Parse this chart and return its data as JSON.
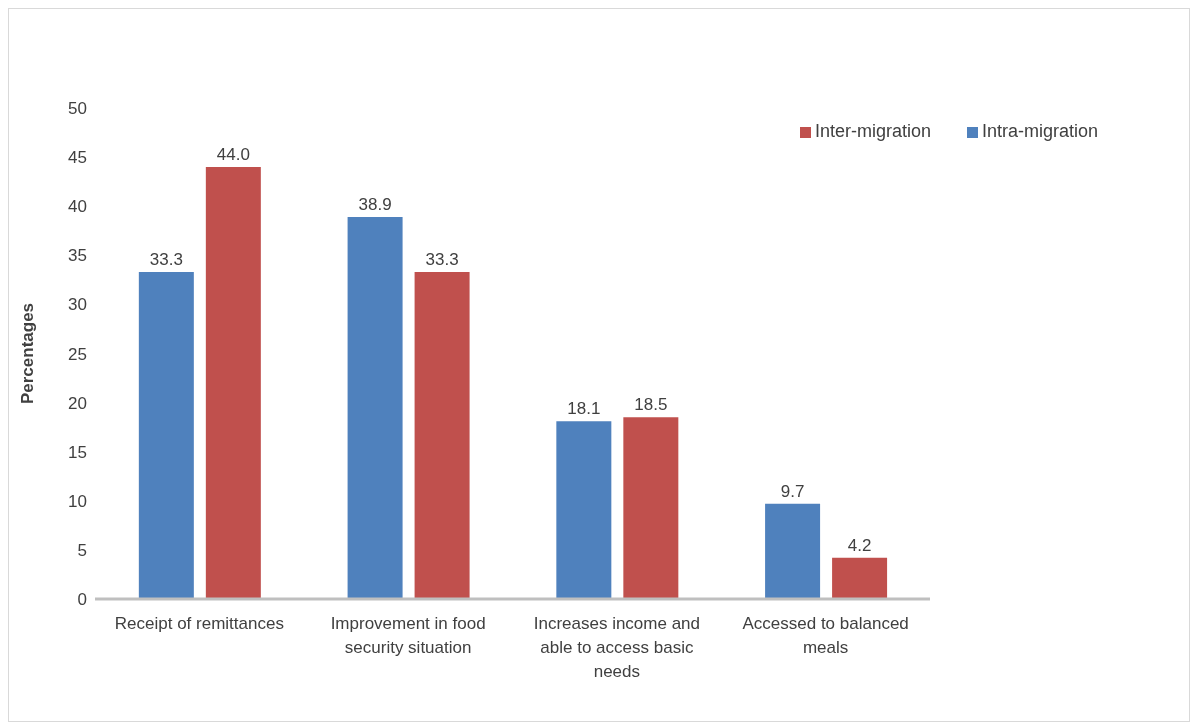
{
  "chart_data": {
    "type": "bar",
    "ylabel": "Percentages",
    "categories": [
      "Receipt of remittances",
      "Improvement in food security situation",
      "Increases income and able to access basic needs",
      "Accessed to balanced meals"
    ],
    "series": [
      {
        "name": "Intra-migration",
        "color": "#4f81bd",
        "values": [
          33.3,
          38.9,
          18.1,
          9.7
        ],
        "value_labels": [
          "33.3",
          "38.9",
          "18.1",
          "9.7"
        ]
      },
      {
        "name": "Inter-migration",
        "color": "#c0504d",
        "values": [
          44.0,
          33.3,
          18.5,
          4.2
        ],
        "value_labels": [
          "44.0",
          "33.3",
          "18.5",
          "4.2"
        ]
      }
    ],
    "ylim": [
      0,
      50
    ],
    "yticks": [
      0,
      5,
      10,
      15,
      20,
      25,
      30,
      35,
      40,
      45,
      50
    ],
    "grid": false,
    "legend": "top right"
  }
}
